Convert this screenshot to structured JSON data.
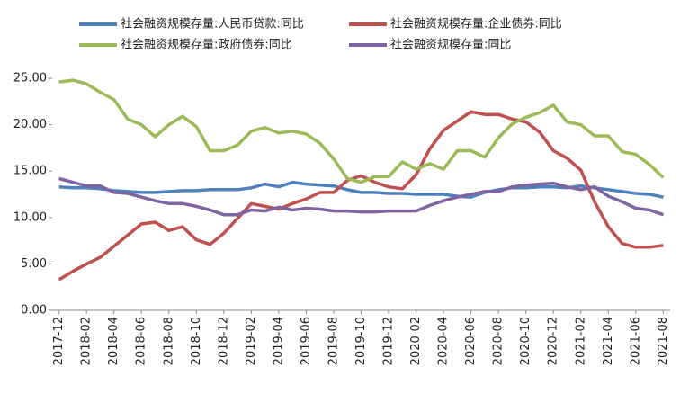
{
  "chart_data": {
    "type": "line",
    "categories": [
      "2017-12",
      null,
      "2018-02",
      null,
      "2018-04",
      null,
      "2018-06",
      null,
      "2018-08",
      null,
      "2018-10",
      null,
      "2018-12",
      null,
      "2019-02",
      null,
      "2019-04",
      null,
      "2019-06",
      null,
      "2019-08",
      null,
      "2019-10",
      null,
      "2019-12",
      null,
      "2020-02",
      null,
      "2020-04",
      null,
      "2020-06",
      null,
      "2020-08",
      null,
      "2020-10",
      null,
      "2020-12",
      null,
      "2021-02",
      null,
      "2021-04",
      null,
      "2021-06",
      null,
      "2021-08"
    ],
    "series": [
      {
        "name": "社会融资规模存量:人民币贷款:同比",
        "color": "#4f81bd",
        "values": [
          13.3,
          13.2,
          13.2,
          13.1,
          12.9,
          12.8,
          12.7,
          12.7,
          12.8,
          12.9,
          12.9,
          13.0,
          13.0,
          13.0,
          13.2,
          13.6,
          13.3,
          13.8,
          13.6,
          13.5,
          13.4,
          13.0,
          12.7,
          12.7,
          12.6,
          12.6,
          12.5,
          12.5,
          12.5,
          12.3,
          12.2,
          12.7,
          13.0,
          13.2,
          13.2,
          13.3,
          13.3,
          13.2,
          13.4,
          13.2,
          13.0,
          12.8,
          12.6,
          12.5,
          12.2
        ]
      },
      {
        "name": "社会融资规模存量:企业债券:同比",
        "color": "#c0504d",
        "values": [
          3.3,
          4.2,
          5.0,
          5.7,
          6.9,
          8.1,
          9.3,
          9.5,
          8.6,
          9.0,
          7.6,
          7.1,
          8.3,
          9.9,
          11.5,
          11.2,
          10.9,
          11.5,
          12.0,
          12.7,
          12.7,
          14.0,
          14.5,
          13.8,
          13.3,
          13.1,
          14.6,
          17.4,
          19.4,
          20.4,
          21.4,
          21.1,
          21.1,
          20.6,
          20.3,
          19.2,
          17.2,
          16.4,
          15.1,
          11.7,
          9.0,
          7.2,
          6.8,
          6.8,
          7.0
        ]
      },
      {
        "name": "社会融资规模存量:政府债券:同比",
        "color": "#9bbb59",
        "values": [
          24.6,
          24.8,
          24.4,
          23.5,
          22.7,
          20.6,
          20.0,
          18.7,
          20.0,
          20.9,
          19.8,
          17.2,
          17.2,
          17.8,
          19.3,
          19.7,
          19.1,
          19.3,
          19.0,
          18.0,
          16.3,
          14.2,
          13.8,
          14.4,
          14.4,
          16.0,
          15.2,
          15.8,
          15.2,
          17.2,
          17.2,
          16.5,
          18.6,
          20.1,
          20.8,
          21.3,
          22.1,
          20.3,
          20.0,
          18.8,
          18.8,
          17.1,
          16.8,
          15.7,
          14.3
        ]
      },
      {
        "name": "社会融资规模存量:同比",
        "color": "#8064a2",
        "values": [
          14.2,
          13.8,
          13.4,
          13.4,
          12.7,
          12.6,
          12.2,
          11.8,
          11.5,
          11.5,
          11.2,
          10.8,
          10.3,
          10.3,
          10.8,
          10.7,
          11.1,
          10.8,
          11.0,
          10.9,
          10.7,
          10.7,
          10.6,
          10.6,
          10.7,
          10.7,
          10.7,
          11.3,
          11.8,
          12.2,
          12.5,
          12.8,
          12.8,
          13.3,
          13.5,
          13.6,
          13.7,
          13.3,
          13.0,
          13.3,
          12.3,
          11.7,
          11.0,
          10.8,
          10.3
        ]
      }
    ],
    "ylim": [
      0,
      25
    ],
    "yticks": [
      {
        "value": 0,
        "label": "0.00"
      },
      {
        "value": 5,
        "label": "5.00"
      },
      {
        "value": 10,
        "label": "10.00"
      },
      {
        "value": 15,
        "label": "15.00"
      },
      {
        "value": 20,
        "label": "20.00"
      },
      {
        "value": 25,
        "label": "25.00"
      }
    ]
  }
}
